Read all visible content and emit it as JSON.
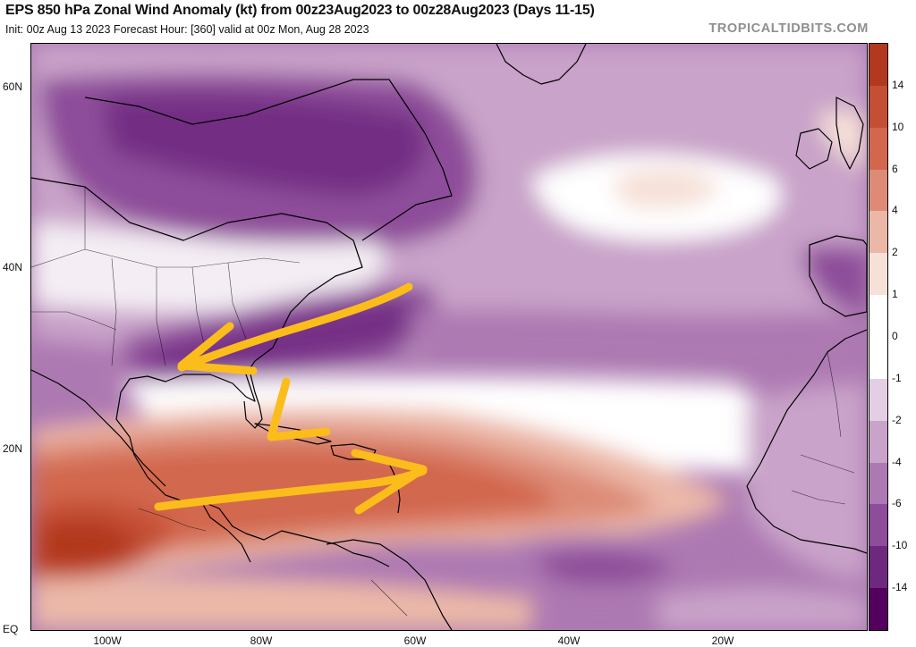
{
  "title": "EPS 850 hPa Zonal Wind Anomaly (kt) from 00z23Aug2023 to 00z28Aug2023 (Days 11-15)",
  "subtitle": "Init: 00z Aug 13 2023   Forecast Hour: [360]   valid at 00z Mon, Aug 28 2023",
  "brand": "TROPICALTIDBITS.COM",
  "lat_labels": [
    "60N",
    "40N",
    "20N",
    "EQ"
  ],
  "lon_labels": [
    "100W",
    "80W",
    "60W",
    "40W",
    "20W"
  ],
  "colorbar": {
    "labels": [
      "14",
      "10",
      "6",
      "4",
      "2",
      "1",
      "0",
      "-1",
      "-2",
      "-4",
      "-6",
      "-10",
      "-14"
    ],
    "colors": [
      "#b2381f",
      "#c44f35",
      "#d2674e",
      "#dd8b77",
      "#ebb8a8",
      "#f6e0d8",
      "#ffffff",
      "#ffffff",
      "#e3cee3",
      "#c9a3c9",
      "#ad79b2",
      "#8e4d9a",
      "#6f2880",
      "#53005e"
    ]
  },
  "annotations": [
    {
      "name": "westward-arrow",
      "color": "#fbbd1b"
    },
    {
      "name": "eastward-arrow",
      "color": "#fbbd1b"
    },
    {
      "name": "caribbean-l-mark",
      "color": "#fbbd1b"
    }
  ]
}
